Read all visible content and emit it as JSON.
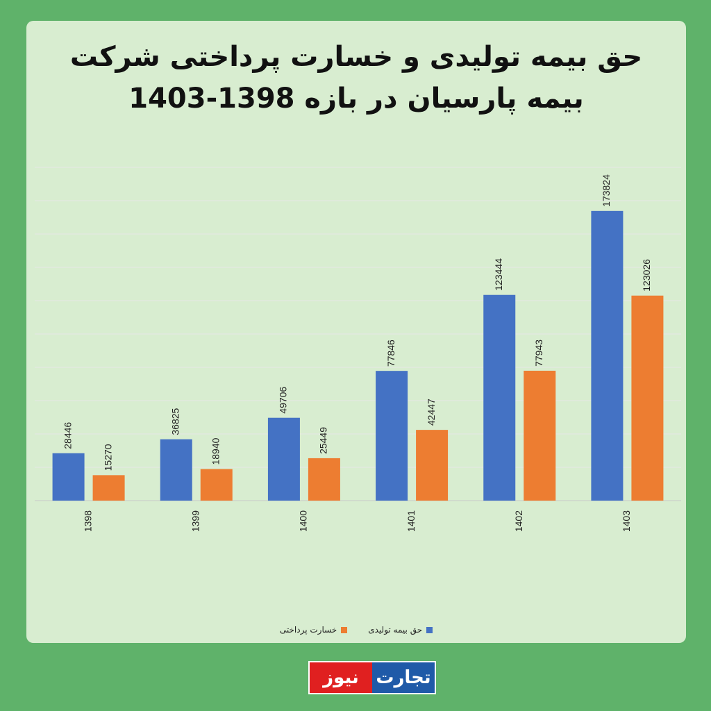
{
  "chart_data": {
    "type": "bar",
    "title": "حق بیمه تولیدی و خسارت پرداختی شرکت بیمه پارسیان در بازه 1398-1403",
    "title_line1": "حق بیمه تولیدی و خسارت پرداختی شرکت",
    "title_line2": "بیمه پارسیان در بازه 1398-1403",
    "categories": [
      "1398",
      "1399",
      "1400",
      "1401",
      "1402",
      "1403"
    ],
    "series": [
      {
        "name": "حق بیمه تولیدی",
        "color": "#4472c4",
        "values": [
          28446,
          36825,
          49706,
          77846,
          123444,
          173824
        ]
      },
      {
        "name": "خسارت پرداختی",
        "color": "#ed7d31",
        "values": [
          15270,
          18940,
          25449,
          42447,
          77943,
          123026
        ]
      }
    ],
    "ylim": [
      0,
      200000
    ],
    "grid": true,
    "legend_position": "bottom"
  },
  "branding": {
    "logo_text_blue": "تجارت",
    "logo_text_red": "نیوز",
    "blue": "#1f5aa8",
    "red": "#e02020"
  },
  "colors": {
    "background": "#5fb26a",
    "card": "#d8edd0"
  }
}
